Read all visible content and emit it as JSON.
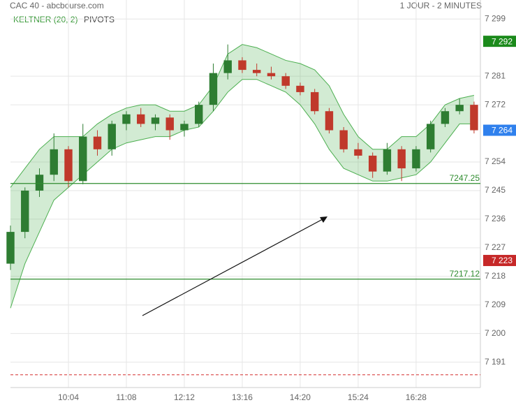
{
  "chart_data": {
    "type": "candlestick",
    "title": "CAC 40 - abcbourse.com",
    "subtitle": "1 JOUR - 2 MINUTES",
    "legend": [
      "KELTNER (20, 2)",
      "PIVOTS"
    ],
    "x": [
      540,
      556,
      572,
      588,
      604,
      620,
      636,
      652,
      668,
      684,
      700,
      716,
      732,
      748,
      764,
      780,
      796,
      812,
      828,
      844,
      860,
      876,
      892,
      908,
      924,
      940,
      956,
      972,
      988,
      1004,
      1020,
      1036,
      1052
    ],
    "open": [
      7222,
      7232,
      7245,
      7250,
      7258,
      7248,
      7262,
      7258,
      7266,
      7269,
      7266,
      7268,
      7264,
      7266,
      7272,
      7282,
      7286,
      7283,
      7282,
      7281,
      7278,
      7276,
      7270,
      7264,
      7258,
      7256,
      7251,
      7258,
      7252,
      7258,
      7266,
      7270,
      7272
    ],
    "high": [
      7234,
      7246,
      7252,
      7263,
      7259,
      7266,
      7264,
      7267,
      7270,
      7271,
      7269,
      7269,
      7267,
      7273,
      7285,
      7291,
      7287,
      7285,
      7284,
      7282,
      7279,
      7277,
      7271,
      7265,
      7260,
      7257,
      7260,
      7259,
      7259,
      7267,
      7271,
      7274,
      7273
    ],
    "low": [
      7220,
      7230,
      7243,
      7248,
      7246,
      7247,
      7256,
      7256,
      7264,
      7265,
      7264,
      7261,
      7262,
      7265,
      7270,
      7280,
      7282,
      7281,
      7280,
      7277,
      7275,
      7269,
      7263,
      7257,
      7255,
      7249,
      7250,
      7248,
      7251,
      7257,
      7265,
      7269,
      7263
    ],
    "close": [
      7232,
      7245,
      7250,
      7258,
      7248,
      7262,
      7258,
      7266,
      7269,
      7266,
      7268,
      7264,
      7266,
      7272,
      7282,
      7286,
      7283,
      7282,
      7281,
      7278,
      7276,
      7270,
      7264,
      7258,
      7256,
      7251,
      7258,
      7252,
      7258,
      7266,
      7270,
      7272,
      7264
    ],
    "up_color": "#2e7d32",
    "down_color": "#c0392b",
    "band": {
      "color": "#4caf50",
      "upper": [
        7246,
        7252,
        7258,
        7262,
        7262,
        7262,
        7266,
        7269,
        7271,
        7272,
        7272,
        7270,
        7270,
        7272,
        7278,
        7288,
        7291,
        7290,
        7288,
        7286,
        7285,
        7283,
        7278,
        7269,
        7262,
        7258,
        7258,
        7262,
        7262,
        7266,
        7272,
        7274,
        7275
      ],
      "lower": [
        7208,
        7222,
        7232,
        7242,
        7246,
        7250,
        7254,
        7258,
        7260,
        7261,
        7262,
        7262,
        7264,
        7265,
        7270,
        7276,
        7280,
        7280,
        7278,
        7276,
        7272,
        7266,
        7258,
        7252,
        7250,
        7248,
        7248,
        7249,
        7250,
        7254,
        7260,
        7266,
        7266
      ]
    },
    "lines": [
      {
        "value": 7247.25,
        "color": "#2e8b2e",
        "labeled": true
      },
      {
        "value": 7217.12,
        "color": "#2e8b2e",
        "labeled": true
      },
      {
        "value": 7187,
        "color": "#d32f2f",
        "labeled": false
      }
    ],
    "price_tags": [
      {
        "value": 7292,
        "label": "7 292",
        "color": "#1b8a1b"
      },
      {
        "value": 7264,
        "label": "7 264",
        "color": "#2f80ed"
      },
      {
        "value": 7223,
        "label": "7 223",
        "color": "#c62828"
      }
    ],
    "xlim": [
      540,
      1059
    ],
    "ylim": [
      7183,
      7305
    ],
    "xticks": [
      {
        "value": 604,
        "label": "10:04"
      },
      {
        "value": 668,
        "label": "11:08"
      },
      {
        "value": 732,
        "label": "12:12"
      },
      {
        "value": 796,
        "label": "13:16"
      },
      {
        "value": 860,
        "label": "14:20"
      },
      {
        "value": 924,
        "label": "15:24"
      },
      {
        "value": 988,
        "label": "16:28"
      }
    ],
    "yticks": [
      {
        "value": 7299,
        "label": "7 299"
      },
      {
        "value": 7281,
        "label": "7 281"
      },
      {
        "value": 7272,
        "label": "7 272"
      },
      {
        "value": 7254,
        "label": "7 254"
      },
      {
        "value": 7245,
        "label": "7 245"
      },
      {
        "value": 7236,
        "label": "7 236"
      },
      {
        "value": 7227,
        "label": "7 227"
      },
      {
        "value": 7218,
        "label": "7 218"
      },
      {
        "value": 7209,
        "label": "7 209"
      },
      {
        "value": 7200,
        "label": "7 200"
      },
      {
        "value": 7191,
        "label": "7 191"
      }
    ],
    "grid": true
  }
}
